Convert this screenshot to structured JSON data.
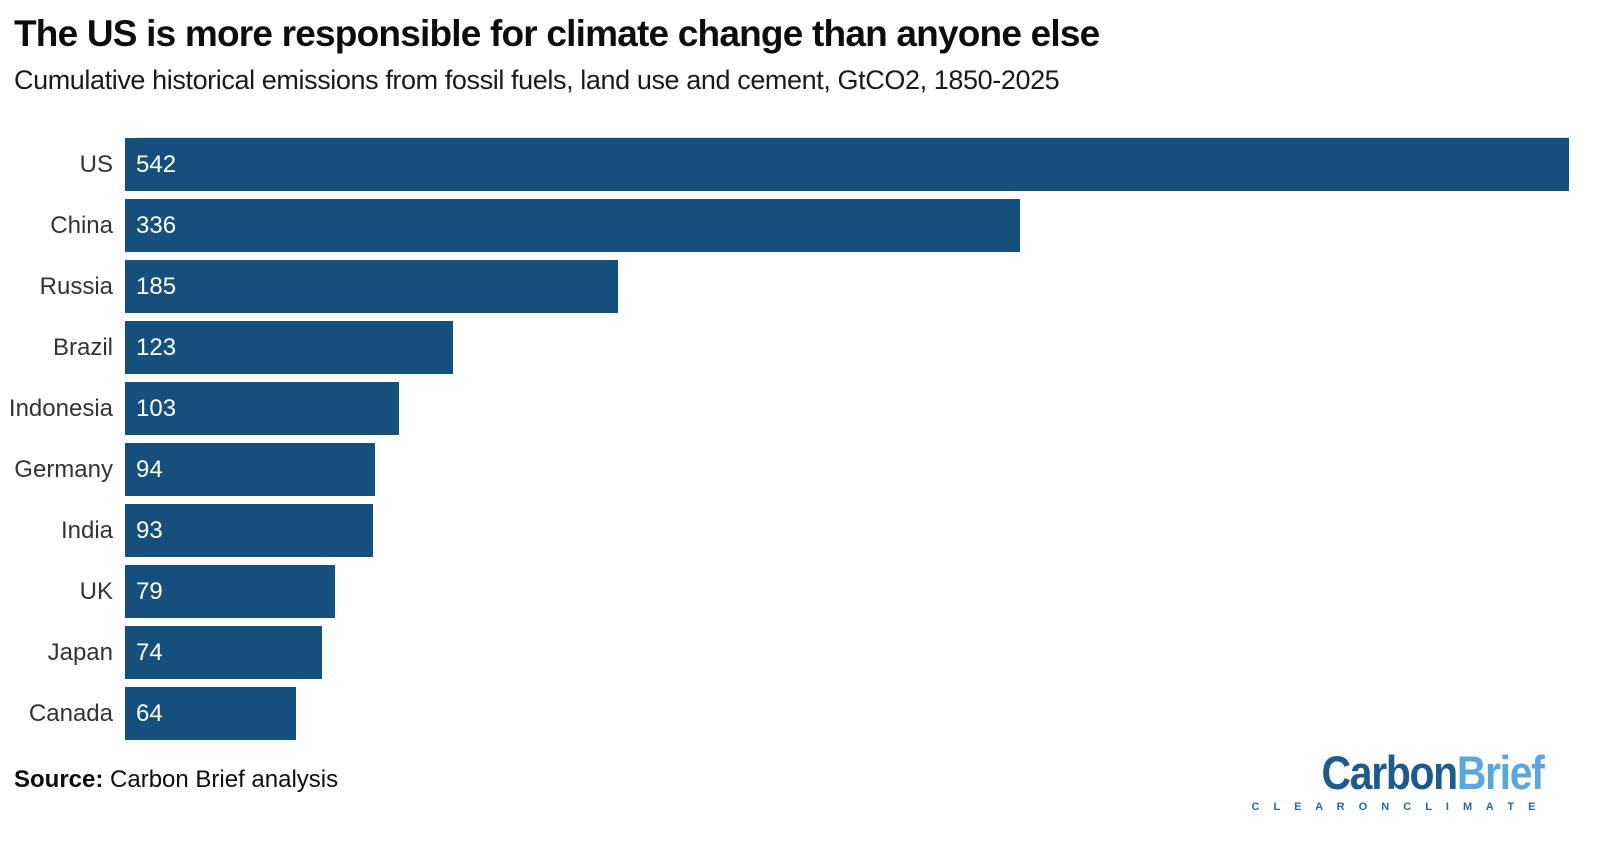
{
  "header": {
    "title": "The US is more responsible for climate change than anyone else",
    "subtitle": "Cumulative historical emissions from fossil fuels, land use and cement, GtCO2, 1850-2025"
  },
  "chart_data": {
    "type": "bar",
    "orientation": "horizontal",
    "title": "The US is more responsible for climate change than anyone else",
    "subtitle": "Cumulative historical emissions from fossil fuels, land use and cement, GtCO2, 1850-2025",
    "unit": "GtCO2",
    "categories": [
      "US",
      "China",
      "Russia",
      "Brazil",
      "Indonesia",
      "Germany",
      "India",
      "UK",
      "Japan",
      "Canada"
    ],
    "values": [
      542,
      336,
      185,
      123,
      103,
      94,
      93,
      79,
      74,
      64
    ],
    "xlim": [
      0,
      542
    ],
    "grid": false,
    "value_labels": "inside-left",
    "bar_color": "#154f7c",
    "value_label_color": "#ffffff",
    "category_label_color": "#333333"
  },
  "footer": {
    "source_label": "Source:",
    "source_text": " Carbon Brief analysis",
    "logo": {
      "part1": "Carbon",
      "part2": "Brief",
      "tagline": "C L E A R   O N   C L I M A T E",
      "part1_color": "#1e5b8d",
      "part2_color": "#5aa7e0",
      "tagline_color": "#2a6a9b"
    }
  }
}
